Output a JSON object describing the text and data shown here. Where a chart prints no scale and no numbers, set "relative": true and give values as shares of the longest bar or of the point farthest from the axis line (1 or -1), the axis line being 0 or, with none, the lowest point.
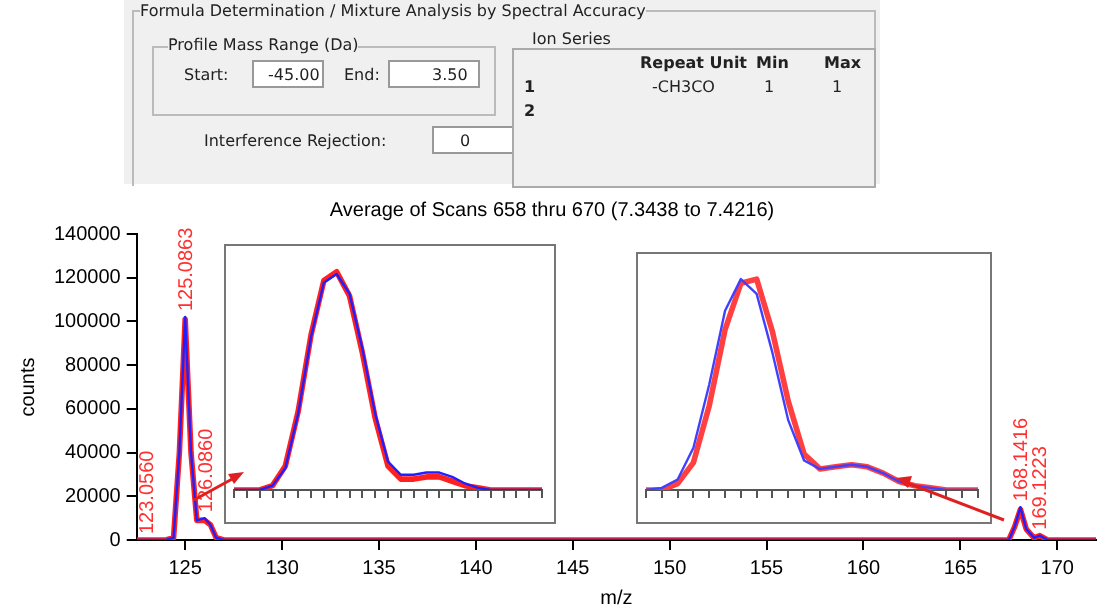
{
  "chart_data": [
    {
      "type": "other",
      "title": "Formula Determination / Mixture Analysis by Spectral Accuracy",
      "annotations": [
        "Profile Mass Range (Da)",
        "Start:",
        "-45.00",
        "End:",
        "3.50",
        "Interference Rejection:",
        "0",
        "Ion Series",
        "Repeat Unit",
        "Min",
        "Max",
        "1",
        "-CH3CO",
        "1",
        "1",
        "2"
      ]
    },
    {
      "type": "line",
      "title": "Average of Scans 658 thru 670 (7.3438 to 7.4216)",
      "xlabel": "m/z",
      "ylabel": "counts",
      "xlim": [
        122.5,
        172
      ],
      "xticks": [
        125,
        130,
        135,
        140,
        145,
        150,
        155,
        160,
        165,
        170
      ],
      "ylim": [
        0,
        140000
      ],
      "yticks": [
        0,
        20000,
        40000,
        60000,
        80000,
        100000,
        120000,
        140000
      ],
      "grid": false,
      "legend": false,
      "marker": "none",
      "line_style": "solid",
      "series": [
        {
          "color": "#ff2020",
          "x": [
            122.5,
            124,
            124.4,
            124.7,
            125,
            125.3,
            125.6,
            126,
            126.3,
            126.6,
            127,
            167.5,
            167.8,
            168.1,
            168.4,
            168.8,
            169.1,
            169.5,
            172
          ],
          "values": [
            0,
            0,
            1000,
            40000,
            101000,
            40000,
            9000,
            9000,
            7000,
            1000,
            0,
            0,
            6000,
            14000,
            5000,
            1000,
            2000,
            0,
            0
          ]
        },
        {
          "color": "#2020ff",
          "x": [
            122.5,
            124,
            124.4,
            124.7,
            125,
            125.3,
            125.6,
            126,
            126.3,
            126.6,
            127,
            167.5,
            167.8,
            168.1,
            168.4,
            168.8,
            169.1,
            169.5,
            172
          ],
          "values": [
            0,
            0,
            1000,
            40000,
            102000,
            40000,
            9000,
            10000,
            7000,
            1000,
            0,
            0,
            6000,
            15000,
            5000,
            1000,
            2000,
            0,
            0
          ]
        }
      ],
      "annotations": [
        {
          "text": "123.0560",
          "x": 123.05,
          "y": 0
        },
        {
          "text": "125.0863",
          "x": 125.09,
          "y": 102000
        },
        {
          "text": "126.0860",
          "x": 126.09,
          "y": 10000
        },
        {
          "text": "168.1416",
          "x": 168.14,
          "y": 15000
        },
        {
          "text": "169.1223",
          "x": 169.12,
          "y": 2000
        }
      ]
    },
    {
      "type": "line",
      "relative": true,
      "grid": false,
      "legend": false,
      "marker": "none",
      "categories": [
        null,
        null,
        null,
        null,
        null,
        null,
        null,
        null,
        null,
        null,
        null,
        null,
        null,
        null,
        null,
        null,
        null,
        null,
        null,
        null,
        null,
        null,
        null,
        null,
        null
      ],
      "series": [
        {
          "color": "#ff2020",
          "values": [
            0,
            0,
            0,
            0.02,
            0.11,
            0.36,
            0.71,
            0.96,
            1,
            0.89,
            0.63,
            0.33,
            0.11,
            0.05,
            0.05,
            0.06,
            0.06,
            0.04,
            0.02,
            0.01,
            0,
            0,
            0,
            0,
            0
          ]
        },
        {
          "color": "#2020ff",
          "values": [
            0,
            0,
            0,
            0.02,
            0.1,
            0.35,
            0.7,
            0.95,
            0.99,
            0.9,
            0.65,
            0.35,
            0.13,
            0.07,
            0.07,
            0.08,
            0.08,
            0.06,
            0.03,
            0.01,
            0,
            0,
            0,
            0,
            0
          ]
        }
      ]
    },
    {
      "type": "line",
      "relative": true,
      "grid": false,
      "legend": false,
      "marker": "none",
      "categories": [
        null,
        null,
        null,
        null,
        null,
        null,
        null,
        null,
        null,
        null,
        null,
        null,
        null,
        null,
        null,
        null,
        null,
        null,
        null,
        null,
        null,
        null
      ],
      "series": [
        {
          "color": "#ff4040",
          "values": [
            0,
            0,
            0.03,
            0.13,
            0.4,
            0.76,
            0.98,
            1,
            0.75,
            0.42,
            0.17,
            0.1,
            0.11,
            0.12,
            0.11,
            0.08,
            0.04,
            0.02,
            0.01,
            0,
            0,
            0
          ]
        },
        {
          "color": "#4040ff",
          "values": [
            0,
            0.01,
            0.05,
            0.2,
            0.5,
            0.85,
            1,
            0.93,
            0.65,
            0.33,
            0.14,
            0.1,
            0.11,
            0.12,
            0.11,
            0.08,
            0.04,
            0.02,
            0.01,
            0,
            0,
            0
          ]
        }
      ]
    }
  ]
}
